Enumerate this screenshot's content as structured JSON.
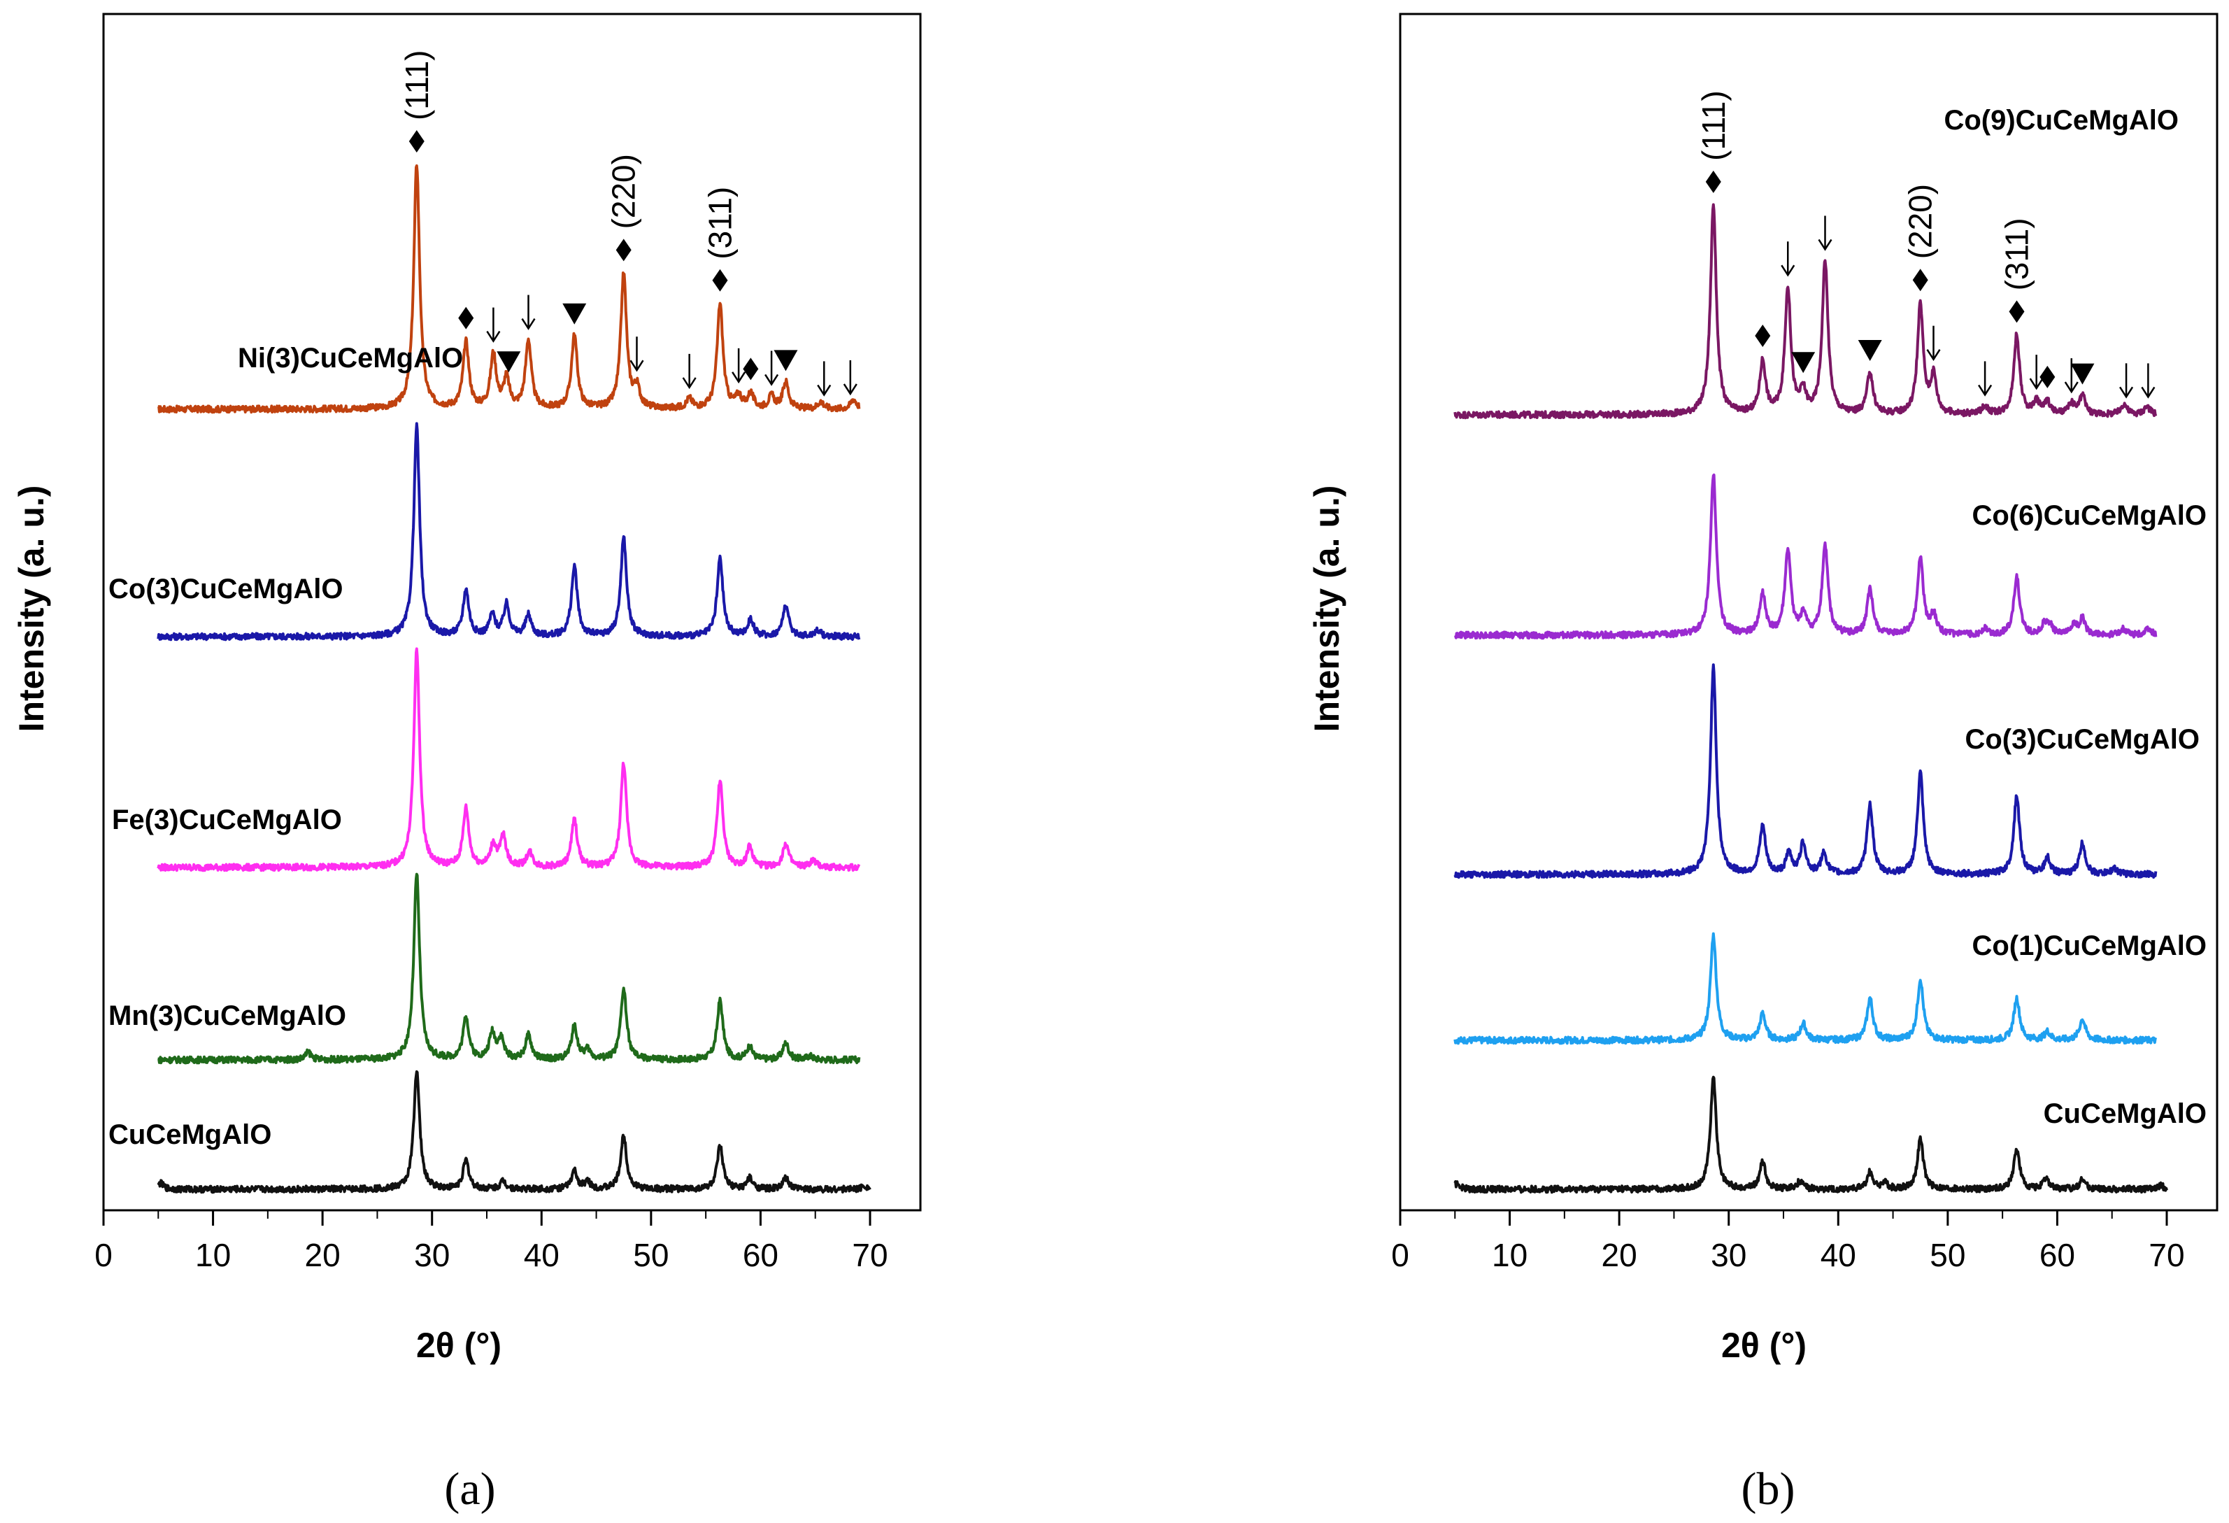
{
  "chart_data": [
    {
      "type": "line",
      "panel_caption": "(a)",
      "xlabel": "2θ (°)",
      "ylabel": "Intensity (a. u.)",
      "xlim": [
        0,
        75
      ],
      "xticks": [
        0,
        10,
        20,
        30,
        40,
        50,
        60,
        70
      ],
      "xtick_labels": [
        "0",
        "10",
        "20",
        "30",
        "40",
        "50",
        "60",
        "70"
      ],
      "grid": false,
      "legend": "inline labels",
      "plane_labels": [
        {
          "text": "(111)",
          "x": 28.6
        },
        {
          "text": "(220)",
          "x": 47.5
        },
        {
          "text": "(311)",
          "x": 56.3
        }
      ],
      "series": [
        {
          "name": "Ni(3)CuCeMgAlO",
          "color": "#c0420f",
          "x_range": [
            5,
            69
          ],
          "baseline": 0,
          "peaks": [
            [
              28.6,
              100
            ],
            [
              33.1,
              27
            ],
            [
              35.6,
              22
            ],
            [
              36.8,
              12
            ],
            [
              38.8,
              28
            ],
            [
              43.0,
              30
            ],
            [
              47.5,
              55
            ],
            [
              48.7,
              8
            ],
            [
              53.5,
              4
            ],
            [
              56.3,
              43
            ],
            [
              58.0,
              5
            ],
            [
              59.1,
              6
            ],
            [
              61.0,
              5
            ],
            [
              62.3,
              11
            ],
            [
              65.5,
              3
            ],
            [
              68.5,
              4
            ]
          ],
          "markers": [
            {
              "symbol": "diamond",
              "x": 28.6
            },
            {
              "symbol": "diamond",
              "x": 33.1
            },
            {
              "symbol": "arrow",
              "x": 35.6
            },
            {
              "symbol": "triangle",
              "x": 37.0
            },
            {
              "symbol": "arrow",
              "x": 38.8
            },
            {
              "symbol": "triangle",
              "x": 43.0
            },
            {
              "symbol": "diamond",
              "x": 47.5
            },
            {
              "symbol": "arrow",
              "x": 48.7
            },
            {
              "symbol": "arrow",
              "x": 53.5
            },
            {
              "symbol": "diamond",
              "x": 56.3
            },
            {
              "symbol": "arrow",
              "x": 58.0
            },
            {
              "symbol": "diamond",
              "x": 59.1
            },
            {
              "symbol": "arrow",
              "x": 61.0
            },
            {
              "symbol": "triangle",
              "x": 62.3
            },
            {
              "symbol": "arrow",
              "x": 65.8
            },
            {
              "symbol": "arrow",
              "x": 68.2
            }
          ]
        },
        {
          "name": "Co(3)CuCeMgAlO",
          "color": "#1a18a8",
          "x_range": [
            5,
            69
          ],
          "baseline": 0,
          "peaks": [
            [
              28.6,
              100
            ],
            [
              33.1,
              22
            ],
            [
              35.5,
              10
            ],
            [
              36.8,
              15
            ],
            [
              38.8,
              10
            ],
            [
              43.0,
              33
            ],
            [
              47.5,
              47
            ],
            [
              56.3,
              37
            ],
            [
              59.1,
              8
            ],
            [
              62.3,
              15
            ],
            [
              65.2,
              3
            ]
          ]
        },
        {
          "name": "Fe(3)CuCeMgAlO",
          "color": "#ff2ef0",
          "x_range": [
            5,
            69
          ],
          "baseline": 0,
          "peaks": [
            [
              28.6,
              100
            ],
            [
              33.1,
              27
            ],
            [
              35.6,
              10
            ],
            [
              36.5,
              14
            ],
            [
              38.9,
              7
            ],
            [
              43.0,
              22
            ],
            [
              47.5,
              48
            ],
            [
              56.3,
              40
            ],
            [
              59.0,
              9
            ],
            [
              62.3,
              11
            ],
            [
              64.8,
              3
            ]
          ]
        },
        {
          "name": "Mn(3)CuCeMgAlO",
          "color": "#1f6a1a",
          "x_range": [
            5,
            69
          ],
          "baseline": 0,
          "peaks": [
            [
              18.7,
              4
            ],
            [
              28.6,
              100
            ],
            [
              33.1,
              23
            ],
            [
              35.5,
              14
            ],
            [
              36.3,
              11
            ],
            [
              38.8,
              13
            ],
            [
              43.0,
              18
            ],
            [
              44.2,
              5
            ],
            [
              47.5,
              38
            ],
            [
              56.3,
              32
            ],
            [
              59.0,
              7
            ],
            [
              62.3,
              9
            ],
            [
              64.5,
              2
            ]
          ]
        },
        {
          "name": "CuCeMgAlO",
          "color": "#111111",
          "x_range": [
            5,
            70
          ],
          "baseline": 0,
          "peaks": [
            [
              5.2,
              5
            ],
            [
              28.6,
              100
            ],
            [
              33.1,
              24
            ],
            [
              36.5,
              7
            ],
            [
              43.0,
              15
            ],
            [
              44.2,
              6
            ],
            [
              47.5,
              45
            ],
            [
              56.3,
              36
            ],
            [
              59.0,
              9
            ],
            [
              62.3,
              9
            ],
            [
              69.5,
              3
            ]
          ]
        }
      ]
    },
    {
      "type": "line",
      "panel_caption": "(b)",
      "xlabel": "2θ (°)",
      "ylabel": "Intensity (a. u.)",
      "xlim": [
        0,
        75
      ],
      "xticks": [
        0,
        10,
        20,
        30,
        40,
        50,
        60,
        70
      ],
      "xtick_labels": [
        "0",
        "10",
        "20",
        "30",
        "40",
        "50",
        "60",
        "70"
      ],
      "grid": false,
      "legend": "inline labels",
      "plane_labels": [
        {
          "text": "(111)",
          "x": 28.6
        },
        {
          "text": "(220)",
          "x": 47.5
        },
        {
          "text": "(311)",
          "x": 56.3
        }
      ],
      "series": [
        {
          "name": "Co(9)CuCeMgAlO",
          "color": "#7a1763",
          "x_range": [
            5,
            69
          ],
          "baseline": 0,
          "peaks": [
            [
              28.6,
              100
            ],
            [
              33.1,
              25
            ],
            [
              35.4,
              60
            ],
            [
              36.8,
              10
            ],
            [
              38.8,
              73
            ],
            [
              42.9,
              20
            ],
            [
              47.5,
              52
            ],
            [
              48.7,
              18
            ],
            [
              53.4,
              4
            ],
            [
              56.3,
              38
            ],
            [
              58.1,
              6
            ],
            [
              59.1,
              6
            ],
            [
              61.3,
              5
            ],
            [
              62.3,
              9
            ],
            [
              66.1,
              5
            ],
            [
              68.2,
              4
            ]
          ],
          "markers": [
            {
              "symbol": "diamond",
              "x": 28.6
            },
            {
              "symbol": "diamond",
              "x": 33.1
            },
            {
              "symbol": "arrow",
              "x": 35.4
            },
            {
              "symbol": "triangle",
              "x": 36.8
            },
            {
              "symbol": "arrow",
              "x": 38.8
            },
            {
              "symbol": "triangle",
              "x": 42.9
            },
            {
              "symbol": "diamond",
              "x": 47.5
            },
            {
              "symbol": "arrow",
              "x": 48.7
            },
            {
              "symbol": "arrow",
              "x": 53.4
            },
            {
              "symbol": "diamond",
              "x": 56.3
            },
            {
              "symbol": "arrow",
              "x": 58.1
            },
            {
              "symbol": "diamond",
              "x": 59.1
            },
            {
              "symbol": "arrow",
              "x": 61.3
            },
            {
              "symbol": "triangle",
              "x": 62.3
            },
            {
              "symbol": "arrow",
              "x": 66.3
            },
            {
              "symbol": "arrow",
              "x": 68.3
            }
          ]
        },
        {
          "name": "Co(6)CuCeMgAlO",
          "color": "#9a2ad0",
          "x_range": [
            5,
            69
          ],
          "baseline": 0,
          "peaks": [
            [
              28.6,
              100
            ],
            [
              33.1,
              25
            ],
            [
              35.4,
              52
            ],
            [
              36.8,
              12
            ],
            [
              38.8,
              55
            ],
            [
              42.9,
              28
            ],
            [
              47.5,
              48
            ],
            [
              48.7,
              12
            ],
            [
              53.4,
              4
            ],
            [
              56.3,
              36
            ],
            [
              58.8,
              6
            ],
            [
              59.3,
              6
            ],
            [
              61.5,
              6
            ],
            [
              62.3,
              10
            ],
            [
              66.0,
              4
            ],
            [
              68.3,
              4
            ]
          ]
        },
        {
          "name": "Co(3)CuCeMgAlO",
          "color": "#1a18a8",
          "x_range": [
            5,
            69
          ],
          "baseline": 0,
          "peaks": [
            [
              28.6,
              100
            ],
            [
              33.1,
              23
            ],
            [
              35.5,
              10
            ],
            [
              36.8,
              15
            ],
            [
              38.7,
              10
            ],
            [
              42.9,
              34
            ],
            [
              47.5,
              49
            ],
            [
              56.3,
              38
            ],
            [
              59.1,
              8
            ],
            [
              62.3,
              15
            ],
            [
              65.2,
              3
            ]
          ]
        },
        {
          "name": "Co(1)CuCeMgAlO",
          "color": "#1ea0f0",
          "x_range": [
            5,
            69
          ],
          "baseline": 0,
          "peaks": [
            [
              28.6,
              100
            ],
            [
              33.1,
              25
            ],
            [
              36.8,
              16
            ],
            [
              42.9,
              40
            ],
            [
              47.5,
              58
            ],
            [
              56.3,
              40
            ],
            [
              59.1,
              8
            ],
            [
              62.3,
              20
            ]
          ]
        },
        {
          "name": "CuCeMgAlO",
          "color": "#111111",
          "x_range": [
            5,
            70
          ],
          "baseline": 0,
          "peaks": [
            [
              5.2,
              5
            ],
            [
              28.6,
              100
            ],
            [
              33.1,
              24
            ],
            [
              36.5,
              7
            ],
            [
              42.9,
              15
            ],
            [
              44.2,
              6
            ],
            [
              47.5,
              45
            ],
            [
              56.3,
              36
            ],
            [
              59.0,
              9
            ],
            [
              62.3,
              9
            ],
            [
              69.5,
              3
            ]
          ]
        }
      ]
    }
  ]
}
